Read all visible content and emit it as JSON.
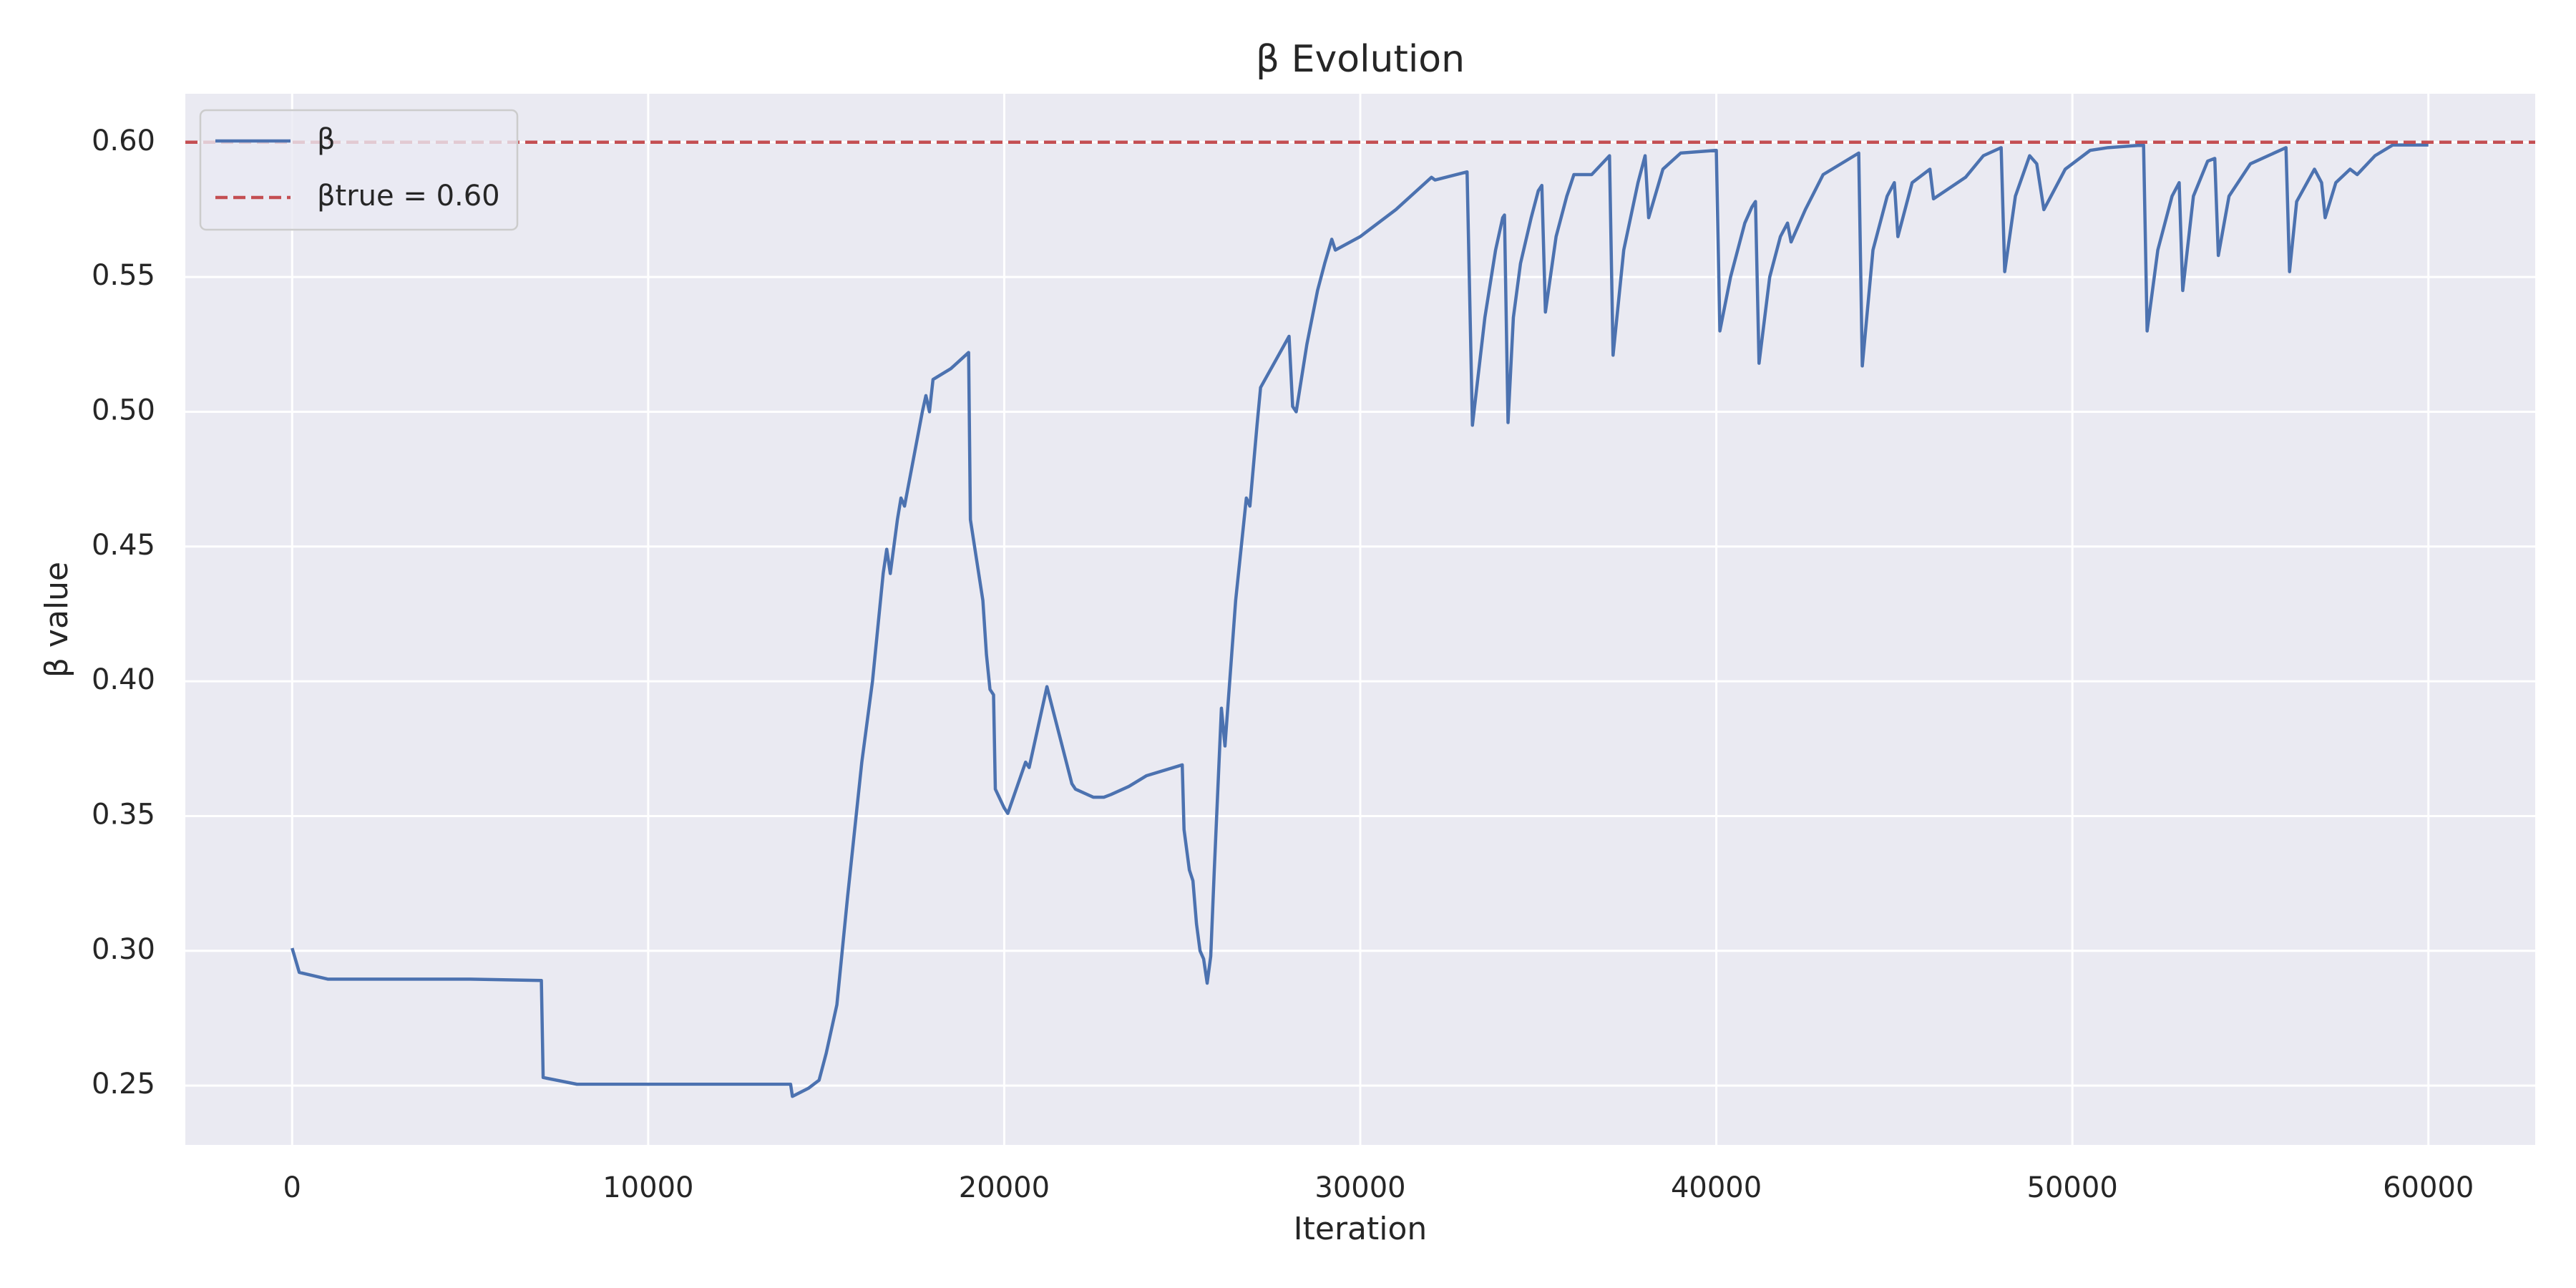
{
  "chart_data": {
    "type": "line",
    "title": "β Evolution",
    "x_label": "Iteration",
    "y_label": "β value",
    "xlim": [
      -3000,
      63000
    ],
    "ylim": [
      0.228,
      0.618
    ],
    "xticks": [
      0,
      10000,
      20000,
      30000,
      40000,
      50000,
      60000
    ],
    "yticks": [
      0.25,
      {
        "value": 0.3,
        "label": "0.30"
      },
      0.35,
      {
        "value": 0.4,
        "label": "0.40"
      },
      0.45,
      {
        "value": 0.5,
        "label": "0.50"
      },
      0.55,
      {
        "value": 0.6,
        "label": "0.60"
      }
    ],
    "grid": true,
    "legend": "upper left",
    "x": [
      0,
      200,
      1000,
      5000,
      7000,
      7050,
      8000,
      14000,
      14050,
      14500,
      14800,
      15000,
      15300,
      15600,
      16000,
      16300,
      16600,
      16700,
      16800,
      17000,
      17100,
      17200,
      17700,
      17800,
      17900,
      18000,
      18500,
      19000,
      19050,
      19400,
      19500,
      19600,
      19700,
      19750,
      20000,
      20100,
      20600,
      20700,
      21200,
      21900,
      22000,
      22500,
      22800,
      23000,
      23500,
      24000,
      25000,
      25050,
      25200,
      25300,
      25400,
      25500,
      25600,
      25700,
      25800,
      25900,
      26100,
      26200,
      26500,
      26800,
      26900,
      27100,
      27200,
      28000,
      28100,
      28200,
      28500,
      28800,
      29000,
      29200,
      29300,
      30000,
      31000,
      32000,
      32100,
      33000,
      33150,
      33500,
      33800,
      34000,
      34050,
      34150,
      34300,
      34500,
      34800,
      35000,
      35100,
      35200,
      35500,
      35800,
      36000,
      36500,
      37000,
      37100,
      37400,
      37800,
      38000,
      38100,
      38500,
      39000,
      40000,
      40100,
      40400,
      40800,
      41000,
      41100,
      41200,
      41500,
      41800,
      42000,
      42100,
      42500,
      43000,
      44000,
      44100,
      44400,
      44800,
      45000,
      45100,
      45500,
      46000,
      46100,
      47000,
      47500,
      48000,
      48100,
      48400,
      48800,
      49000,
      49200,
      49800,
      50500,
      51000,
      52000,
      52100,
      52400,
      52800,
      53000,
      53100,
      53400,
      53800,
      54000,
      54100,
      54400,
      55000,
      56000,
      56100,
      56300,
      56800,
      57000,
      57100,
      57400,
      57800,
      58000,
      58500,
      59000,
      60000
    ],
    "series": [
      {
        "name": "β",
        "color": "#4c72b0",
        "values": [
          0.301,
          0.292,
          0.2895,
          0.2895,
          0.289,
          0.253,
          0.2505,
          0.2505,
          0.246,
          0.249,
          0.252,
          0.262,
          0.28,
          0.32,
          0.37,
          0.4,
          0.44,
          0.449,
          0.44,
          0.46,
          0.468,
          0.465,
          0.5,
          0.506,
          0.5,
          0.512,
          0.516,
          0.522,
          0.46,
          0.43,
          0.41,
          0.397,
          0.395,
          0.36,
          0.353,
          0.351,
          0.37,
          0.368,
          0.398,
          0.362,
          0.36,
          0.357,
          0.357,
          0.358,
          0.361,
          0.365,
          0.369,
          0.345,
          0.33,
          0.326,
          0.31,
          0.3,
          0.297,
          0.288,
          0.298,
          0.33,
          0.39,
          0.376,
          0.43,
          0.468,
          0.465,
          0.495,
          0.509,
          0.528,
          0.502,
          0.5,
          0.525,
          0.545,
          0.555,
          0.564,
          0.56,
          0.565,
          0.575,
          0.587,
          0.586,
          0.589,
          0.495,
          0.535,
          0.56,
          0.572,
          0.573,
          0.496,
          0.535,
          0.555,
          0.572,
          0.582,
          0.584,
          0.537,
          0.565,
          0.58,
          0.588,
          0.588,
          0.595,
          0.521,
          0.56,
          0.585,
          0.595,
          0.572,
          0.59,
          0.596,
          0.597,
          0.53,
          0.55,
          0.57,
          0.576,
          0.578,
          0.518,
          0.55,
          0.565,
          0.57,
          0.563,
          0.575,
          0.588,
          0.596,
          0.517,
          0.56,
          0.58,
          0.585,
          0.565,
          0.585,
          0.59,
          0.579,
          0.587,
          0.595,
          0.598,
          0.552,
          0.58,
          0.595,
          0.592,
          0.575,
          0.59,
          0.597,
          0.598,
          0.599,
          0.53,
          0.56,
          0.58,
          0.585,
          0.545,
          0.58,
          0.593,
          0.594,
          0.558,
          0.58,
          0.592,
          0.598,
          0.552,
          0.578,
          0.59,
          0.585,
          0.572,
          0.585,
          0.59,
          0.588,
          0.595,
          0.599,
          0.599
        ]
      }
    ],
    "reference_line": {
      "value": 0.6,
      "label": "βtrue = 0.60",
      "color": "#c44e52"
    }
  }
}
